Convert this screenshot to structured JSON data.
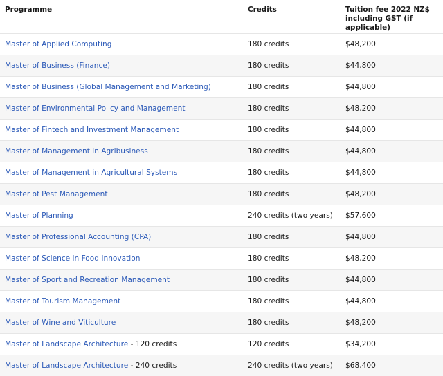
{
  "table": {
    "header": [
      "Programme",
      "Credits",
      [
        "Tuition fee 2022 NZ$",
        "including GST (if applicable)"
      ]
    ],
    "rows": [
      [
        {
          "link": "Master of Applied Computing"
        },
        "180 credits",
        "$48,200"
      ],
      [
        {
          "link": "Master of Business (Finance)"
        },
        "180 credits",
        "$44,800"
      ],
      [
        {
          "link": "Master of Business (Global Management and Marketing)"
        },
        "180 credits",
        "$44,800"
      ],
      [
        {
          "link": "Master of Environmental Policy and Management"
        },
        "180 credits",
        "$48,200"
      ],
      [
        {
          "link": "Master of Fintech and Investment Management"
        },
        "180 credits",
        "$44,800"
      ],
      [
        {
          "link": "Master of Management in Agribusiness"
        },
        "180 credits",
        "$44,800"
      ],
      [
        {
          "link": "Master of Management in Agricultural Systems"
        },
        "180 credits",
        "$44,800"
      ],
      [
        {
          "link": "Master of Pest Management"
        },
        "180 credits",
        "$48,200"
      ],
      [
        {
          "link": "Master of Planning"
        },
        "240 credits (two years)",
        "$57,600"
      ],
      [
        {
          "link": "Master of Professional Accounting (CPA)"
        },
        "180 credits",
        "$44,800"
      ],
      [
        {
          "link": "Master of Science in Food Innovation"
        },
        "180 credits",
        "$48,200"
      ],
      [
        {
          "link": "Master of Sport and Recreation Management"
        },
        "180 credits",
        "$44,800"
      ],
      [
        {
          "link": "Master of Tourism Management"
        },
        "180 credits",
        "$44,800"
      ],
      [
        {
          "link": "Master of Wine and Viticulture"
        },
        "180 credits",
        "$48,200"
      ],
      [
        {
          "link": "Master of Landscape Architecture",
          "note": " - 120 credits"
        },
        "120 credits",
        "$34,200"
      ],
      [
        {
          "link": "Master of Landscape Architecture",
          "note": " - 240 credits"
        },
        "240 credits (two years)",
        "$68,400"
      ]
    ]
  }
}
